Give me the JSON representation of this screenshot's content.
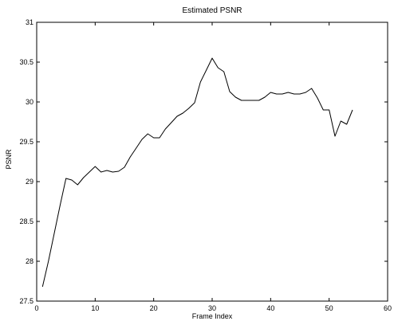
{
  "chart_data": {
    "type": "line",
    "title": "Estimated PSNR",
    "xlabel": "Frame Index",
    "ylabel": "PSNR",
    "xlim": [
      0,
      60
    ],
    "ylim": [
      27.5,
      31
    ],
    "xticks": [
      0,
      10,
      20,
      30,
      40,
      50,
      60
    ],
    "yticks": [
      27.5,
      28,
      28.5,
      29,
      29.5,
      30,
      30.5,
      31
    ],
    "xtick_labels": [
      "0",
      "10",
      "20",
      "30",
      "40",
      "50",
      "60"
    ],
    "ytick_labels": [
      "27.5",
      "28",
      "28.5",
      "29",
      "29.5",
      "30",
      "30.5",
      "31"
    ],
    "grid": false,
    "series": [
      {
        "x": [
          1,
          2,
          3,
          4,
          5,
          6,
          7,
          8,
          9,
          10,
          11,
          12,
          13,
          14,
          15,
          16,
          17,
          18,
          19,
          20,
          21,
          22,
          23,
          24,
          25,
          26,
          27,
          28,
          29,
          30,
          31,
          32,
          33,
          34,
          35,
          36,
          37,
          38,
          39,
          40,
          41,
          42,
          43,
          44,
          45,
          46,
          47,
          48,
          49,
          50,
          51,
          52,
          53,
          54
        ],
        "values": [
          27.68,
          28.0,
          28.35,
          28.7,
          29.04,
          29.02,
          28.96,
          29.05,
          29.12,
          29.19,
          29.12,
          29.14,
          29.12,
          29.13,
          29.18,
          29.31,
          29.42,
          29.53,
          29.6,
          29.55,
          29.55,
          29.66,
          29.74,
          29.82,
          29.86,
          29.92,
          29.99,
          30.25,
          30.4,
          30.55,
          30.43,
          30.38,
          30.13,
          30.06,
          30.02,
          30.02,
          30.02,
          30.02,
          30.06,
          30.12,
          30.1,
          30.1,
          30.12,
          30.1,
          30.1,
          30.12,
          30.17,
          30.05,
          29.9,
          29.9,
          29.57,
          29.76,
          29.72,
          29.9
        ]
      }
    ]
  }
}
